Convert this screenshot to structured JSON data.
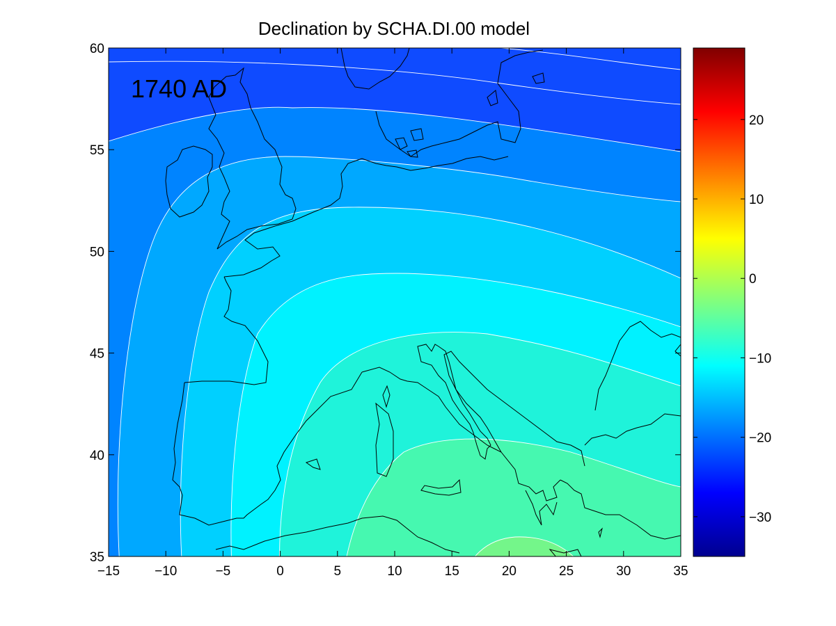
{
  "title": "Declination by SCHA.DI.00 model",
  "epoch_label": "1740 AD",
  "map": {
    "type": "contour",
    "x_range": [
      -15,
      35
    ],
    "y_range": [
      35,
      60
    ],
    "x_ticks": [
      -15,
      -10,
      -5,
      0,
      5,
      10,
      15,
      20,
      25,
      30,
      35
    ],
    "y_ticks": [
      35,
      40,
      45,
      50,
      55,
      60
    ],
    "contour_band_colors": [
      "#0f4bff",
      "#0084ff",
      "#00a8ff",
      "#00d0ff",
      "#00f2ff",
      "#1ff3da",
      "#46f8b0",
      "#74f68a"
    ],
    "contour_line_color": "#ffffff",
    "coastline_color": "#000000"
  },
  "colorbar": {
    "range": [
      -35,
      29
    ],
    "ticks": [
      20,
      10,
      0,
      -10,
      -20,
      -30
    ],
    "colormap": "jet"
  }
}
